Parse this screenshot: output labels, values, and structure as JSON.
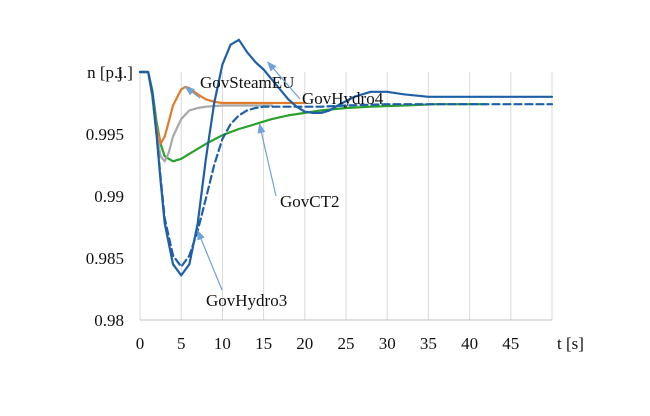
{
  "chart_data": {
    "type": "line",
    "title": "",
    "xlabel": "t [s]",
    "ylabel": "n [p.j.]",
    "xlim": [
      0,
      50
    ],
    "ylim": [
      0.98,
      1.0
    ],
    "xticks": [
      0,
      5,
      10,
      15,
      20,
      25,
      30,
      35,
      40,
      45
    ],
    "yticks": [
      0.98,
      0.985,
      0.99,
      0.995,
      1
    ],
    "ytick_labels": [
      "0.98",
      "0.985",
      "0.99",
      "0.995",
      "1"
    ],
    "grid": "vertical",
    "legend": "none",
    "series": [
      {
        "name": "GovCT2",
        "color": "#2ca02c",
        "dash": "solid",
        "x": [
          0,
          1,
          1.5,
          2,
          2.5,
          3,
          4,
          5,
          6,
          8,
          10,
          12,
          14,
          16,
          18,
          20,
          22,
          25,
          28,
          32,
          36,
          42
        ],
        "y": [
          1,
          1,
          0.9985,
          0.996,
          0.9942,
          0.9932,
          0.9928,
          0.993,
          0.9934,
          0.9942,
          0.9949,
          0.9954,
          0.9958,
          0.9962,
          0.9965,
          0.9967,
          0.9969,
          0.9971,
          0.9972,
          0.9973,
          0.9974,
          0.9974
        ]
      },
      {
        "name": "GovSteamEU",
        "color": "#e07b2a",
        "dash": "solid",
        "x": [
          0,
          1,
          1.5,
          2,
          2.5,
          3,
          3.5,
          4,
          5,
          5.5,
          6,
          7,
          8,
          9,
          10,
          12,
          14,
          16,
          18,
          20
        ],
        "y": [
          1,
          1,
          0.998,
          0.9955,
          0.9942,
          0.9948,
          0.996,
          0.9973,
          0.9986,
          0.9988,
          0.9987,
          0.9982,
          0.9978,
          0.9976,
          0.9975,
          0.9975,
          0.9975,
          0.9975,
          0.9975,
          0.9975
        ]
      },
      {
        "name": "",
        "color": "#a8a8a8",
        "dash": "solid",
        "x": [
          0,
          1,
          1.5,
          2,
          2.5,
          3,
          3.5,
          4,
          5,
          6,
          7,
          8,
          10,
          12,
          14,
          16
        ],
        "y": [
          1,
          1,
          0.998,
          0.995,
          0.9932,
          0.9928,
          0.9935,
          0.9948,
          0.9962,
          0.9969,
          0.9971,
          0.9972,
          0.9973,
          0.9973,
          0.9973,
          0.9973
        ]
      },
      {
        "name": "GovHydro4",
        "color": "#1f5fa8",
        "dash": "solid",
        "x": [
          0,
          1,
          1.5,
          2,
          2.5,
          3,
          4,
          5,
          6,
          7,
          8,
          9,
          10,
          11,
          12,
          13,
          14,
          15,
          16,
          17,
          18,
          19,
          20,
          21,
          22,
          23,
          24,
          26,
          28,
          30,
          32,
          35,
          38,
          40,
          45,
          50
        ],
        "y": [
          1,
          1,
          0.9982,
          0.995,
          0.9912,
          0.9878,
          0.9845,
          0.9836,
          0.9845,
          0.9878,
          0.993,
          0.9975,
          1.0006,
          1.0022,
          1.0026,
          1.0016,
          1.0008,
          1.0002,
          0.9994,
          0.9986,
          0.9978,
          0.9972,
          0.9968,
          0.9967,
          0.9967,
          0.9969,
          0.9973,
          0.998,
          0.9984,
          0.9984,
          0.9982,
          0.998,
          0.998,
          0.998,
          0.998,
          0.998
        ]
      },
      {
        "name": "GovHydro3",
        "color": "#1f5fa8",
        "dash": "dashed",
        "x": [
          0,
          1,
          1.5,
          2,
          2.5,
          3,
          4,
          5,
          6,
          7,
          8,
          9,
          10,
          11,
          12,
          13,
          14,
          15,
          16,
          18,
          20,
          22,
          25,
          30,
          35,
          40,
          45,
          50
        ],
        "y": [
          1,
          1,
          0.9982,
          0.995,
          0.9915,
          0.9882,
          0.9852,
          0.9843,
          0.9852,
          0.9872,
          0.9898,
          0.9925,
          0.9946,
          0.9958,
          0.9965,
          0.9969,
          0.9971,
          0.9972,
          0.9972,
          0.9972,
          0.9972,
          0.9972,
          0.9973,
          0.9974,
          0.9974,
          0.9974,
          0.9974,
          0.9974
        ]
      }
    ],
    "annotations": [
      {
        "text": "GovSteamEU",
        "target_series": "GovSteamEU",
        "target_x": 5.5,
        "target_y": 0.9988
      },
      {
        "text": "GovHydro4",
        "target_series": "GovHydro4",
        "target_x": 15.5,
        "target_y": 1.0008
      },
      {
        "text": "GovCT2",
        "target_series": "GovCT2",
        "target_x": 14.5,
        "target_y": 0.9958
      },
      {
        "text": "GovHydro3",
        "target_series": "GovHydro3",
        "target_x": 7,
        "target_y": 0.9872
      }
    ],
    "annotation_color": "#6fa2d6"
  }
}
